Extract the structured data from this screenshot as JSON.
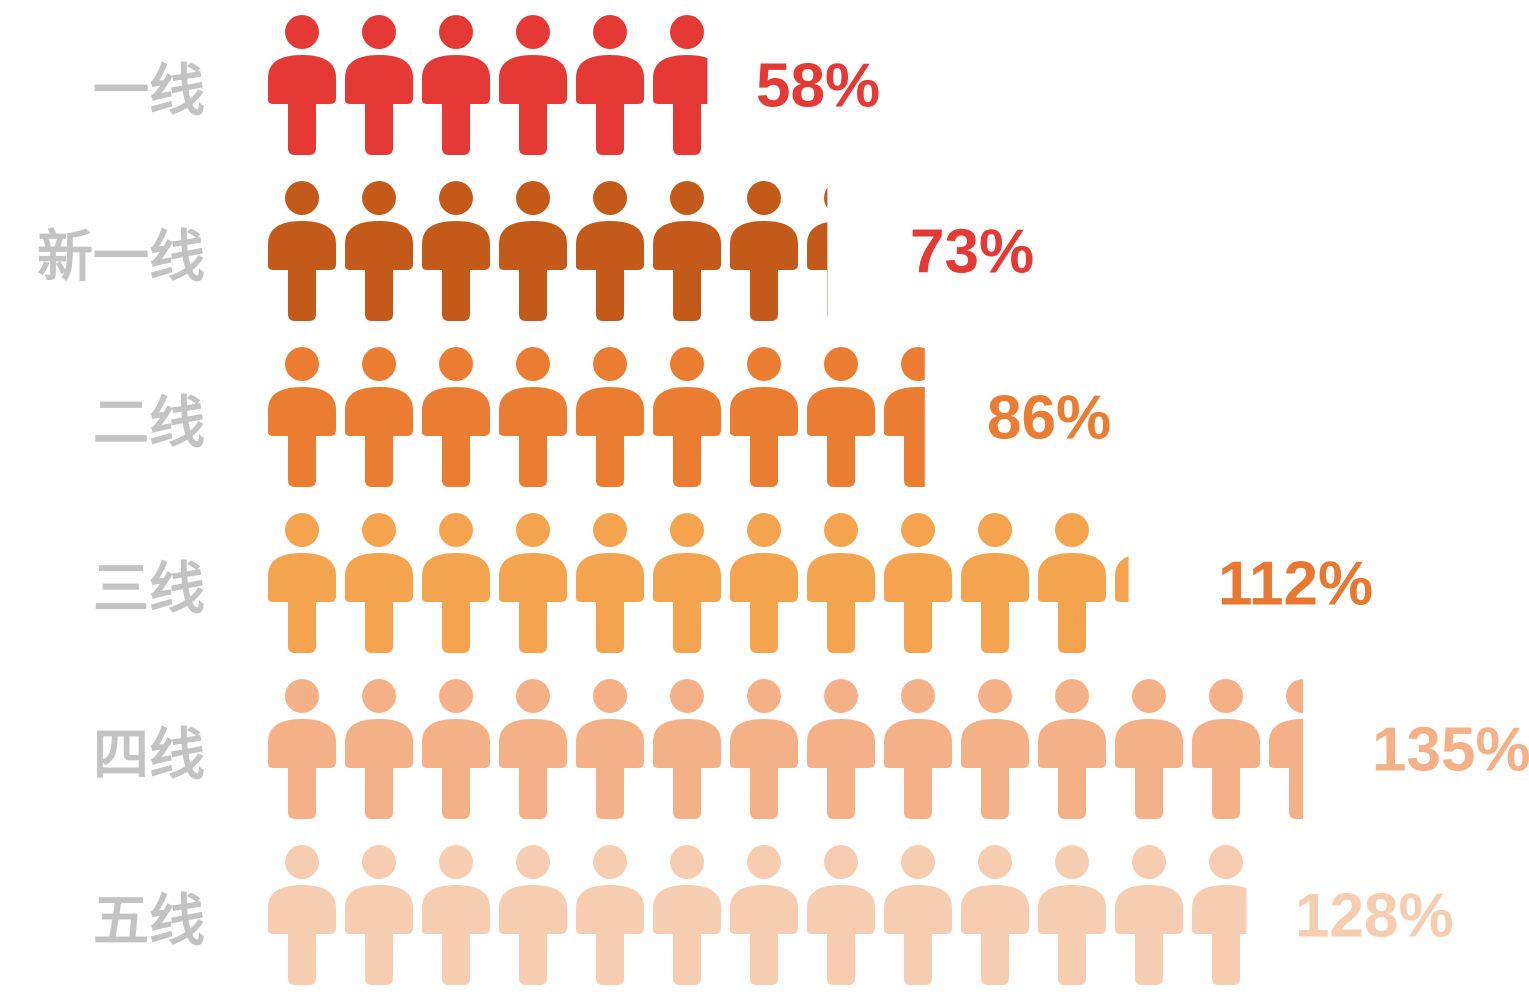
{
  "chart_data": {
    "type": "pictorial",
    "categories": [
      "一线",
      "新一线",
      "二线",
      "三线",
      "四线",
      "五线"
    ],
    "values": [
      58,
      73,
      86,
      112,
      135,
      128
    ],
    "value_labels": [
      "58%",
      "73%",
      "86%",
      "112%",
      "135%",
      "128%"
    ],
    "colors": [
      "#e53935",
      "#c45a1a",
      "#eb7d33",
      "#f4a44f",
      "#f4b187",
      "#f6cdb0"
    ],
    "label_colors": [
      "#e53935",
      "#e53935",
      "#eb7d33",
      "#e8782f",
      "#f4b187",
      "#f6cdb0"
    ]
  }
}
